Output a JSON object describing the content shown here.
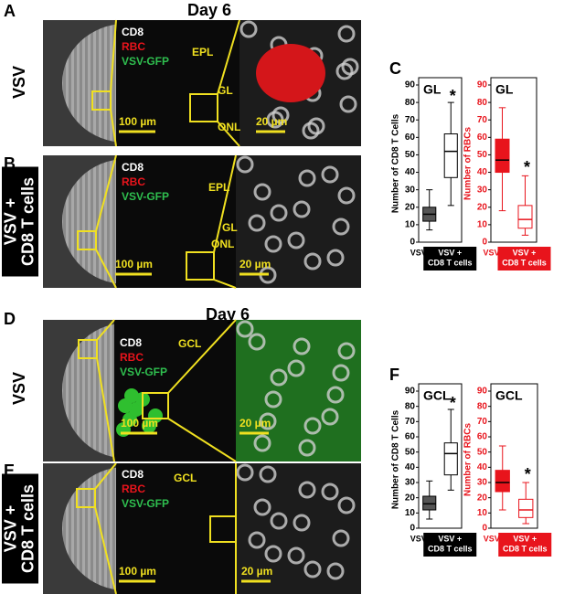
{
  "panels": {
    "A": {
      "letter": "A",
      "title": "Day 6",
      "row_label": "VSV",
      "stains": [
        "CD8",
        "RBC",
        "VSV-GFP"
      ],
      "regions": [
        "EPL",
        "GL",
        "ONL"
      ],
      "scale_bars": [
        "100 µm",
        "20 µm"
      ]
    },
    "B": {
      "letter": "B",
      "row_label": "VSV + CD8 T cells",
      "stains": [
        "CD8",
        "RBC",
        "VSV-GFP"
      ],
      "regions": [
        "EPL",
        "GL",
        "ONL"
      ],
      "scale_bars": [
        "100 µm",
        "20 µm"
      ]
    },
    "C": {
      "letter": "C"
    },
    "D": {
      "letter": "D",
      "title": "Day 6",
      "row_label": "VSV",
      "stains": [
        "CD8",
        "RBC",
        "VSV-GFP"
      ],
      "regions": [
        "GCL"
      ],
      "scale_bars": [
        "100 µm",
        "20 µm"
      ]
    },
    "E": {
      "letter": "E",
      "row_label": "VSV + CD8 T cells",
      "stains": [
        "CD8",
        "RBC",
        "VSV-GFP"
      ],
      "regions": [
        "GCL"
      ],
      "scale_bars": [
        "100 µm",
        "20 µm"
      ]
    },
    "F": {
      "letter": "F"
    }
  },
  "chart_data": [
    {
      "type": "box",
      "title": "GL",
      "ylabel": "Number of CD8 T Cells",
      "color": "#000000",
      "fill": "#555555",
      "annotation": "*",
      "categories": [
        "VSV",
        "VSV + CD8 T cells"
      ],
      "boxes": [
        {
          "min": 7,
          "q1": 12,
          "median": 16,
          "q3": 20,
          "max": 30
        },
        {
          "min": 21,
          "q1": 37,
          "median": 52,
          "q3": 62,
          "max": 80
        }
      ],
      "ylim": [
        0,
        90
      ],
      "yticks": [
        0,
        10,
        20,
        30,
        40,
        50,
        60,
        70,
        80,
        90
      ]
    },
    {
      "type": "box",
      "title": "GL",
      "ylabel": "Number of RBCs",
      "color": "#e8141c",
      "fill": "#e8141c",
      "annotation": "*",
      "categories": [
        "VSV",
        "VSV + CD8 T cells"
      ],
      "boxes": [
        {
          "min": 18,
          "q1": 40,
          "median": 47,
          "q3": 59,
          "max": 77
        },
        {
          "min": 4,
          "q1": 8,
          "median": 13,
          "q3": 21,
          "max": 38
        }
      ],
      "ylim": [
        0,
        90
      ],
      "yticks": [
        0,
        10,
        20,
        30,
        40,
        50,
        60,
        70,
        80,
        90
      ]
    },
    {
      "type": "box",
      "title": "GCL",
      "ylabel": "Number of CD8 T Cells",
      "color": "#000000",
      "fill": "#555555",
      "annotation": "*",
      "categories": [
        "VSV",
        "VSV + CD8 T cells"
      ],
      "boxes": [
        {
          "min": 6,
          "q1": 12,
          "median": 16,
          "q3": 21,
          "max": 31
        },
        {
          "min": 25,
          "q1": 35,
          "median": 49,
          "q3": 56,
          "max": 78
        }
      ],
      "ylim": [
        0,
        90
      ],
      "yticks": [
        0,
        10,
        20,
        30,
        40,
        50,
        60,
        70,
        80,
        90
      ]
    },
    {
      "type": "box",
      "title": "GCL",
      "ylabel": "Number of RBCs",
      "color": "#e8141c",
      "fill": "#e8141c",
      "annotation": "*",
      "categories": [
        "VSV",
        "VSV + CD8 T cells"
      ],
      "boxes": [
        {
          "min": 12,
          "q1": 24,
          "median": 30,
          "q3": 38,
          "max": 54
        },
        {
          "min": 3,
          "q1": 7,
          "median": 12,
          "q3": 19,
          "max": 30
        }
      ],
      "ylim": [
        0,
        90
      ],
      "yticks": [
        0,
        10,
        20,
        30,
        40,
        50,
        60,
        70,
        80,
        90
      ]
    }
  ]
}
